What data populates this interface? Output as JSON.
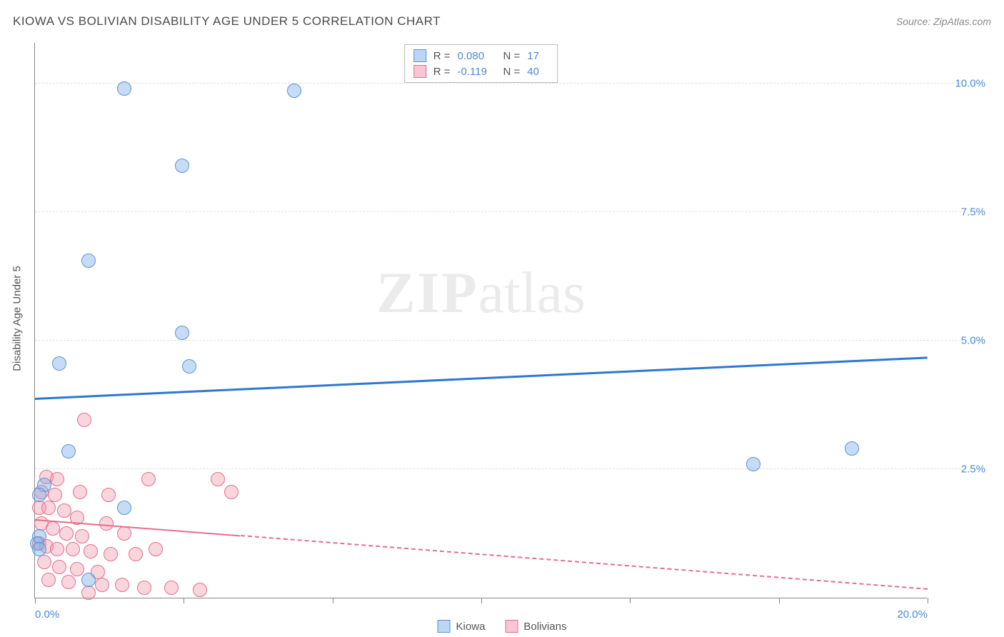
{
  "header": {
    "title": "KIOWA VS BOLIVIAN DISABILITY AGE UNDER 5 CORRELATION CHART",
    "source": "Source: ZipAtlas.com"
  },
  "watermark": {
    "bold": "ZIP",
    "rest": "atlas"
  },
  "chart": {
    "type": "scatter",
    "ylabel": "Disability Age Under 5",
    "xlim": [
      0,
      20
    ],
    "ylim": [
      0,
      10.8
    ],
    "xtick_positions": [
      0,
      3.33,
      6.67,
      10,
      13.33,
      16.67,
      20
    ],
    "xtick_labels_shown": {
      "0": "0.0%",
      "20": "20.0%"
    },
    "ytick_positions": [
      2.5,
      5.0,
      7.5,
      10.0
    ],
    "ytick_labels": [
      "2.5%",
      "5.0%",
      "7.5%",
      "10.0%"
    ],
    "grid_color": "#dddddd",
    "axis_color": "#888888",
    "background_color": "#ffffff",
    "point_radius": 10,
    "point_border_width": 1.2,
    "series": [
      {
        "name": "Kiowa",
        "fill_color": "rgba(128,176,232,0.45)",
        "stroke_color": "#5b94d6",
        "swatch_fill": "#bcd5f2",
        "swatch_border": "#5b94d6",
        "R": "0.080",
        "N": "17",
        "trend": {
          "y_at_x0": 3.85,
          "y_at_x20": 4.65,
          "color": "#2e78d2",
          "width": 3,
          "dashed": false
        },
        "points": [
          [
            2.0,
            9.9
          ],
          [
            5.8,
            9.85
          ],
          [
            3.3,
            8.4
          ],
          [
            1.2,
            6.55
          ],
          [
            3.3,
            5.15
          ],
          [
            0.55,
            4.55
          ],
          [
            3.45,
            4.5
          ],
          [
            0.75,
            2.85
          ],
          [
            0.2,
            2.2
          ],
          [
            0.1,
            2.0
          ],
          [
            2.0,
            1.75
          ],
          [
            0.1,
            1.2
          ],
          [
            0.05,
            1.05
          ],
          [
            0.1,
            0.95
          ],
          [
            1.2,
            0.35
          ],
          [
            16.1,
            2.6
          ],
          [
            18.3,
            2.9
          ]
        ]
      },
      {
        "name": "Bolivians",
        "fill_color": "rgba(240,150,170,0.40)",
        "stroke_color": "#e36f8a",
        "swatch_fill": "#f6c6d2",
        "swatch_border": "#e36f8a",
        "R": "-0.119",
        "N": "40",
        "trend": {
          "y_at_x0": 1.5,
          "y_at_x20": 0.15,
          "color": "#e36f8a",
          "width": 2.5,
          "solid_until_x": 4.6
        },
        "points": [
          [
            1.1,
            3.45
          ],
          [
            0.25,
            2.35
          ],
          [
            0.5,
            2.3
          ],
          [
            2.55,
            2.3
          ],
          [
            0.15,
            2.05
          ],
          [
            0.45,
            2.0
          ],
          [
            1.0,
            2.05
          ],
          [
            1.65,
            2.0
          ],
          [
            4.1,
            2.3
          ],
          [
            4.4,
            2.05
          ],
          [
            0.1,
            1.75
          ],
          [
            0.3,
            1.75
          ],
          [
            0.65,
            1.7
          ],
          [
            0.95,
            1.55
          ],
          [
            0.15,
            1.45
          ],
          [
            0.4,
            1.35
          ],
          [
            0.7,
            1.25
          ],
          [
            1.05,
            1.2
          ],
          [
            1.6,
            1.45
          ],
          [
            2.0,
            1.25
          ],
          [
            0.1,
            1.05
          ],
          [
            0.25,
            1.0
          ],
          [
            0.5,
            0.95
          ],
          [
            0.85,
            0.95
          ],
          [
            1.25,
            0.9
          ],
          [
            1.7,
            0.85
          ],
          [
            2.25,
            0.85
          ],
          [
            2.7,
            0.95
          ],
          [
            0.2,
            0.7
          ],
          [
            0.55,
            0.6
          ],
          [
            0.95,
            0.55
          ],
          [
            1.4,
            0.5
          ],
          [
            0.3,
            0.35
          ],
          [
            0.75,
            0.3
          ],
          [
            1.5,
            0.25
          ],
          [
            1.95,
            0.25
          ],
          [
            2.45,
            0.2
          ],
          [
            3.05,
            0.2
          ],
          [
            1.2,
            0.1
          ],
          [
            3.7,
            0.15
          ]
        ]
      }
    ]
  },
  "legend": {
    "items": [
      {
        "label": "Kiowa",
        "swatch_fill": "#bcd5f2",
        "swatch_border": "#5b94d6"
      },
      {
        "label": "Bolivians",
        "swatch_fill": "#f6c6d2",
        "swatch_border": "#e36f8a"
      }
    ]
  }
}
